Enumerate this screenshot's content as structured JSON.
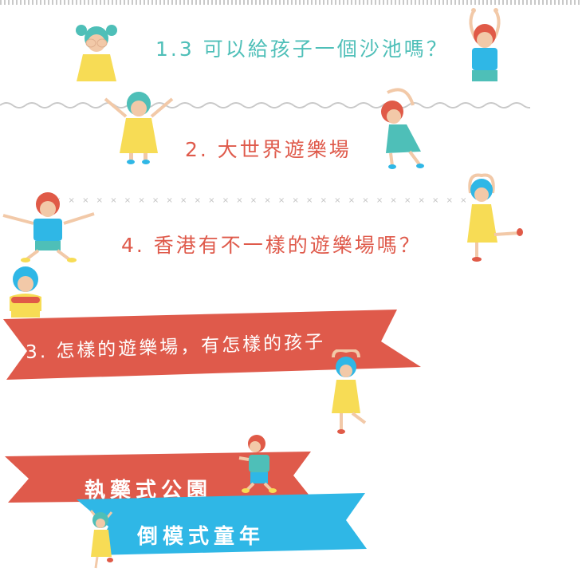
{
  "headings": {
    "h1": "1.3 可以給孩子一個沙池嗎？",
    "h2": "2. 大世界遊樂場",
    "h3": "4. 香港有不一樣的遊樂場嗎？"
  },
  "banners": {
    "b1": "3. 怎樣的遊樂場，有怎樣的孩子",
    "b2": "執藥式公園",
    "b3": "倒模式童年"
  },
  "colors": {
    "teal": "#4ebfb8",
    "red": "#df5a4b",
    "blue": "#2fb7e6",
    "yellow": "#f7dc55",
    "skin": "#f2c9a8",
    "hair": "#e05a47"
  },
  "decor": {
    "x_marks": "× × × × × × × × × × × × × × × × × × × × × × × × × × × × × × × × × × × × × × × × × ×"
  }
}
